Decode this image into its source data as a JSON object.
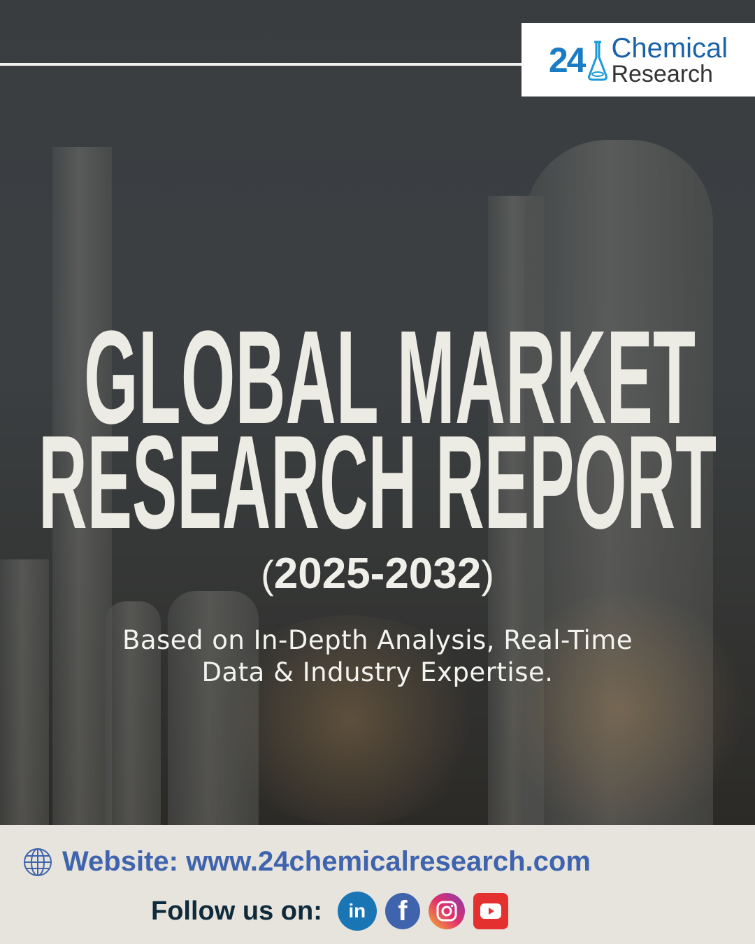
{
  "logo": {
    "number": "24",
    "line1": "Chemical",
    "line2": "Research"
  },
  "title": {
    "line1": "GLOBAL MARKET",
    "line2": "RESEARCH REPORT"
  },
  "years": {
    "open": "(",
    "range": "2025-2032",
    "close": ")"
  },
  "subtitle": {
    "line1": "Based on In-Depth Analysis, Real-Time",
    "line2": "Data & Industry Expertise."
  },
  "footer": {
    "website": "Website: www.24chemicalresearch.com",
    "follow_label": "Follow us on:",
    "social": [
      {
        "icon": "linkedin-icon",
        "glyph": "in"
      },
      {
        "icon": "facebook-icon",
        "glyph": "f"
      },
      {
        "icon": "instagram-icon",
        "glyph": ""
      },
      {
        "icon": "youtube-icon",
        "glyph": ""
      }
    ]
  },
  "colors": {
    "accent": "#3f63ad",
    "title": "#ecebe4",
    "footer_bg": "#e6e4dc"
  }
}
